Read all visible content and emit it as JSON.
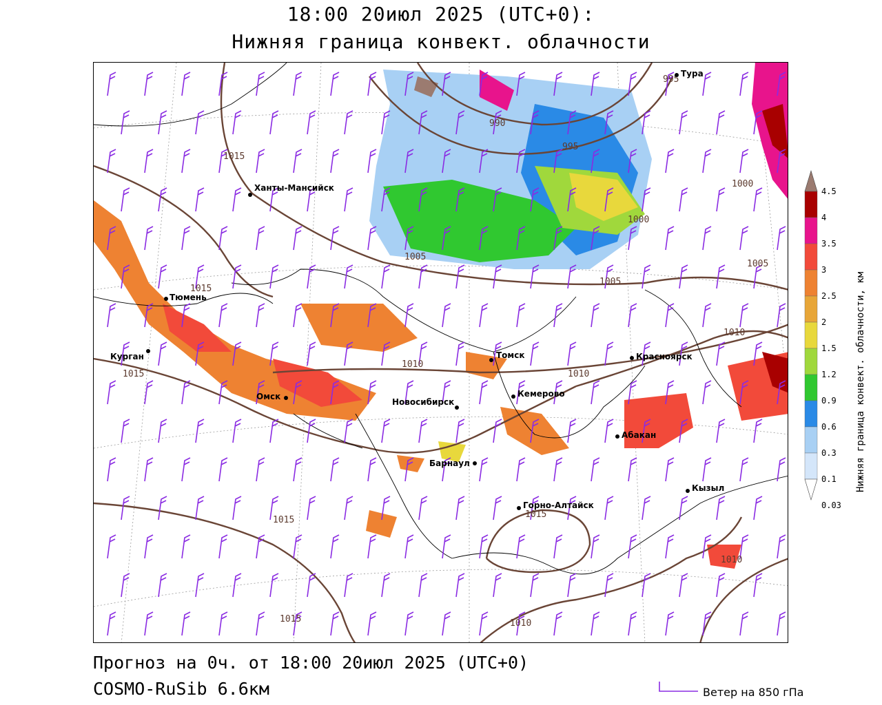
{
  "header": {
    "line1": "18:00 20июл 2025 (UTC+0):",
    "line2": "Нижняя граница конвект. облачности"
  },
  "footer": {
    "forecast": "Прогноз на 0ч. от 18:00 20июл 2025 (UTC+0)",
    "model": "COSMO-RuSib 6.6км",
    "wind_legend": "Ветер на 850 гПа"
  },
  "colorbar": {
    "title": "Нижняя граница конвект. облачности, км",
    "levels": [
      "4.5",
      "4",
      "3.5",
      "3",
      "2.5",
      "2",
      "1.5",
      "1.2",
      "0.9",
      "0.6",
      "0.3",
      "0.1",
      "0.03"
    ],
    "colors": [
      "#9b7b70",
      "#a80000",
      "#e8148c",
      "#f24a3a",
      "#ee8232",
      "#e8a638",
      "#e8d83c",
      "#a0d83c",
      "#30c830",
      "#2a8ae6",
      "#a8d0f4",
      "#d4e6fa",
      "#ececfa"
    ]
  },
  "cities": [
    {
      "name": "Тура"
    },
    {
      "name": "Ханты-Мансийск"
    },
    {
      "name": "Тюмень"
    },
    {
      "name": "Курган"
    },
    {
      "name": "Омск"
    },
    {
      "name": "Новосибирск"
    },
    {
      "name": "Томск"
    },
    {
      "name": "Кемерово"
    },
    {
      "name": "Барнаул"
    },
    {
      "name": "Красноярск"
    },
    {
      "name": "Абакан"
    },
    {
      "name": "Кызыл"
    },
    {
      "name": "Горно-Алтайск"
    }
  ],
  "isobar_labels": [
    "995",
    "990",
    "995",
    "1015",
    "1015",
    "1015",
    "1005",
    "1000",
    "1000",
    "1005",
    "1005",
    "1010",
    "1010",
    "1010",
    "1015",
    "1015",
    "1015",
    "1010",
    "1010"
  ],
  "colors": {
    "isobar": "#6a4536",
    "wind": "#8a2be2",
    "border": "#000000"
  }
}
